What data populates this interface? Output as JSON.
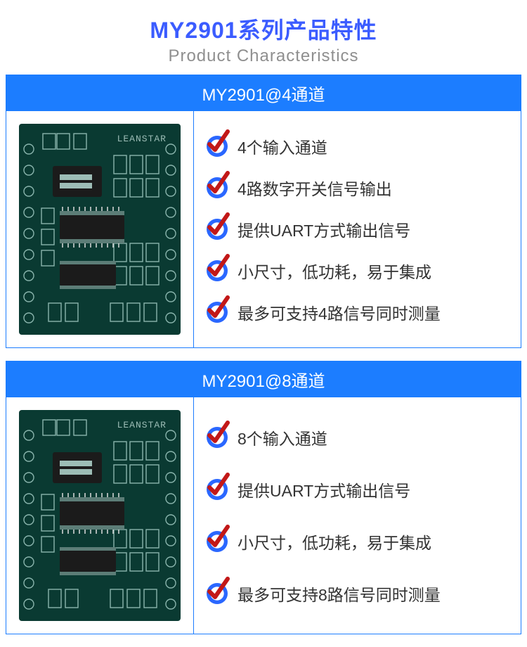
{
  "colors": {
    "title_cn": "#3b5cff",
    "title_en": "#8f8f8f",
    "header_bg": "#1c7dff",
    "border": "#1c7dff",
    "feature_text": "#333333",
    "check_ring": "#2a67ff",
    "check_tick": "#c21818",
    "pcb_bg": "#0a3a32",
    "pcb_silk": "#8ab5ad",
    "pcb_brand": "LEANSTAR"
  },
  "header": {
    "title_cn": "MY2901系列产品特性",
    "title_en": "Product Characteristics"
  },
  "sections": [
    {
      "title": "MY2901@4通道",
      "features": [
        "4个输入通道",
        "4路数字开关信号输出",
        "提供UART方式输出信号",
        "小尺寸，低功耗，易于集成",
        "最多可支持4路信号同时测量"
      ]
    },
    {
      "title": "MY2901@8通道",
      "features": [
        "8个输入通道",
        "提供UART方式输出信号",
        "小尺寸，低功耗，易于集成",
        "最多可支持8路信号同时测量"
      ]
    }
  ]
}
